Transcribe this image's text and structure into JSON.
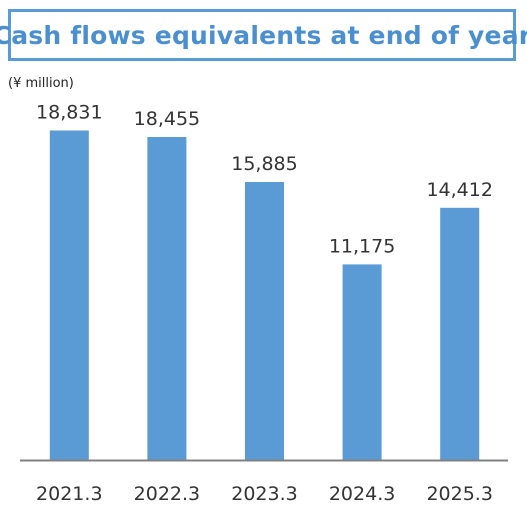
{
  "chart_data": {
    "type": "bar",
    "title": "Cash flows equivalents at end of year",
    "unit_label": "(¥ million)",
    "categories": [
      "2021.3",
      "2022.3",
      "2023.3",
      "2024.3",
      "2025.3"
    ],
    "values": [
      18831,
      18455,
      15885,
      11175,
      14412
    ],
    "value_labels": [
      "18,831",
      "18,455",
      "15,885",
      "11,175",
      "14,412"
    ],
    "ylim": [
      0,
      20000
    ],
    "grid": false,
    "legend": "none",
    "colors": {
      "bar": "#5b9bd5",
      "axis": "#808080",
      "title_border": "#5b9bd5",
      "title_text": "#4a8fd0"
    }
  }
}
